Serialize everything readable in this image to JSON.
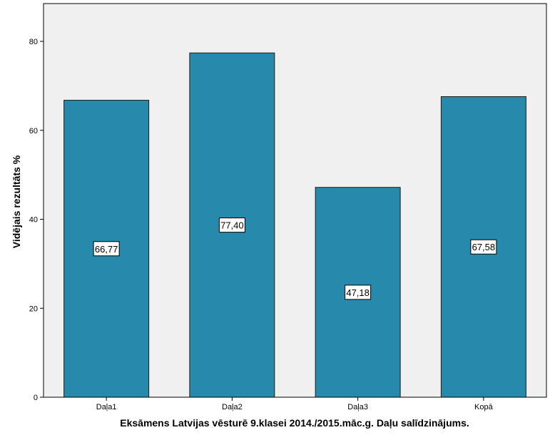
{
  "chart_data": {
    "type": "bar",
    "title": "",
    "xlabel": "Eksāmens Latvijas vēsturē 9.klasei 2014./2015.māc.g. Daļu salīdzinājums.",
    "ylabel": "Vidējais rezultāts %",
    "categories": [
      "Daļa1",
      "Daļa2",
      "Daļa3",
      "Kopā"
    ],
    "values": [
      66.77,
      77.4,
      47.18,
      67.58
    ],
    "data_labels": [
      "66,77",
      "77,40",
      "47,18",
      "67,58"
    ],
    "y_ticks": [
      0,
      20,
      40,
      60,
      80
    ],
    "ylim": [
      0,
      88.5
    ],
    "grid": false,
    "legend": "none",
    "colors": {
      "bar_fill": "#2789ab",
      "bar_stroke": "#1c1c1c",
      "plot_bg": "#f0f0f0",
      "axis": "#000000"
    }
  }
}
